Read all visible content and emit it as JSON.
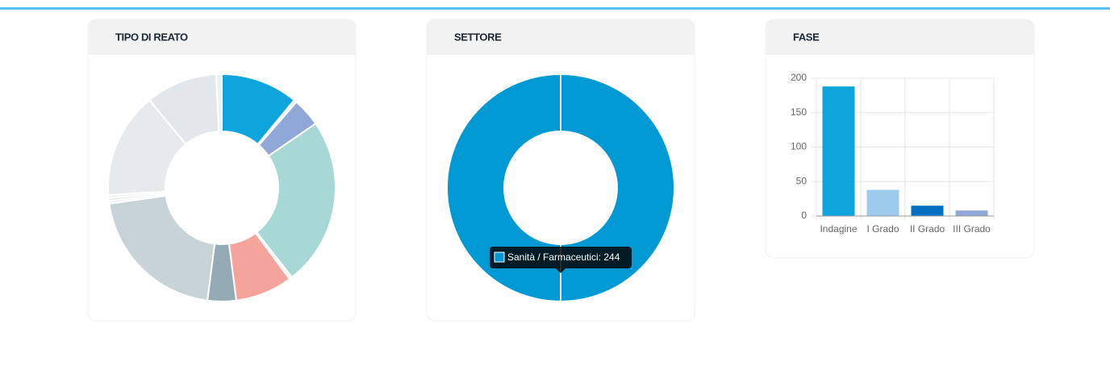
{
  "chart_data": [
    {
      "type": "pie",
      "title": "TIPO DI REATO",
      "values": [
        27,
        1,
        10,
        59,
        1,
        20,
        10,
        51,
        1,
        1,
        1,
        37,
        25,
        2
      ],
      "colors": [
        "#0ea5dd",
        "#eef1f3",
        "#8fa8d8",
        "#a8d8d6",
        "#eef1f3",
        "#f4a49a",
        "#94aab5",
        "#c8d3d8",
        "#eef1f3",
        "#e3e8eb",
        "#eef1f3",
        "#e6eaed",
        "#e1e7ea",
        "#eef1f3"
      ]
    },
    {
      "type": "pie",
      "title": "SETTORE",
      "values": [
        244
      ],
      "colors": [
        "#0099d4"
      ],
      "tooltip": "Sanità / Farmaceutici: 244"
    },
    {
      "type": "bar",
      "title": "FASE",
      "categories": [
        "Indagine",
        "I Grado",
        "II Grado",
        "III Grado"
      ],
      "values": [
        188,
        38,
        15,
        8
      ],
      "colors": [
        "#0ea5dd",
        "#9ccbec",
        "#0070c0",
        "#8fa8d8"
      ],
      "ylim": [
        0,
        200
      ],
      "yticks": [
        0,
        50,
        100,
        150,
        200
      ],
      "grid": true
    }
  ]
}
